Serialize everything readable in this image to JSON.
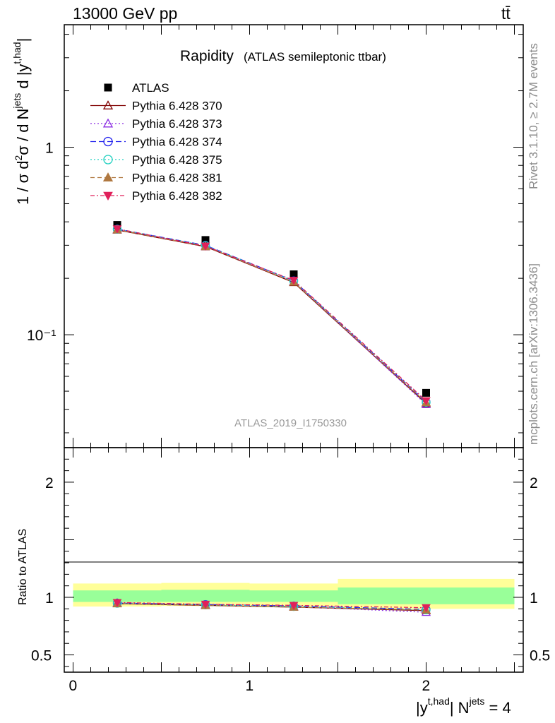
{
  "header": {
    "energy_label": "13000 GeV pp",
    "process_label": "tt̄"
  },
  "title": {
    "main": "Rapidity",
    "sub": "(ATLAS semileptonic ttbar)"
  },
  "sidebar": {
    "rivet": "Rivet 3.1.10, ≥ 2.7M events",
    "source": "mcplots.cern.ch [arXiv:1306.3436]"
  },
  "watermark": "ATLAS_2019_I1750330",
  "colors": {
    "data": "#000000",
    "band_inner": "#99ff99",
    "band_outer": "#ffff99"
  },
  "chart_data": [
    {
      "type": "line",
      "panel": "main",
      "ylabel": "1 / σ d²σ / d N^jets d |y^t,had|",
      "yscale": "log",
      "xlim": [
        -0.05,
        2.55
      ],
      "ylim": [
        0.025,
        4.5
      ],
      "y_tick_labels": [
        "10⁻¹",
        "1"
      ],
      "x": [
        0.25,
        0.75,
        1.25,
        2.0
      ],
      "series": [
        {
          "name": "ATLAS",
          "marker": "square-filled",
          "color": "#000000",
          "dash": "",
          "values": [
            0.385,
            0.32,
            0.21,
            0.049
          ]
        },
        {
          "name": "Pythia 6.428 370",
          "marker": "triangle-up-open",
          "color": "#800000",
          "dash": "",
          "values": [
            0.362,
            0.295,
            0.19,
            0.043
          ]
        },
        {
          "name": "Pythia 6.428 373",
          "marker": "triangle-up-open",
          "color": "#8a2be2",
          "dash": "2,3",
          "values": [
            0.364,
            0.298,
            0.192,
            0.0425
          ]
        },
        {
          "name": "Pythia 6.428 374",
          "marker": "circle-open",
          "color": "#2222ee",
          "dash": "8,4",
          "values": [
            0.366,
            0.3,
            0.194,
            0.0438
          ]
        },
        {
          "name": "Pythia 6.428 375",
          "marker": "circle-open",
          "color": "#20d0c0",
          "dash": "2,3",
          "values": [
            0.365,
            0.299,
            0.193,
            0.0436
          ]
        },
        {
          "name": "Pythia 6.428 381",
          "marker": "triangle-up-filled",
          "color": "#b07840",
          "dash": "6,4",
          "values": [
            0.363,
            0.296,
            0.191,
            0.0435
          ]
        },
        {
          "name": "Pythia 6.428 382",
          "marker": "triangle-down-filled",
          "color": "#e0205a",
          "dash": "6,3,2,3",
          "values": [
            0.367,
            0.297,
            0.195,
            0.0445
          ]
        }
      ]
    },
    {
      "type": "line",
      "panel": "ratio",
      "ylabel": "Ratio to ATLAS",
      "xlabel": "|y^t,had| N^jets = 4",
      "xlim": [
        -0.05,
        2.55
      ],
      "ylim": [
        0.35,
        2.3
      ],
      "x_tick_labels": [
        "0",
        "1",
        "2"
      ],
      "y_tick_labels": [
        "0.5",
        "1",
        "2"
      ],
      "x": [
        0.25,
        0.75,
        1.25,
        2.0
      ],
      "bands": [
        {
          "name": "total uncertainty",
          "bins": [
            [
              0.0,
              0.5,
              0.92,
              1.12
            ],
            [
              0.5,
              1.0,
              0.925,
              1.125
            ],
            [
              1.0,
              1.5,
              0.92,
              1.12
            ],
            [
              1.5,
              2.5,
              0.9,
              1.16
            ]
          ]
        },
        {
          "name": "stat uncertainty",
          "bins": [
            [
              0.0,
              0.5,
              0.96,
              1.06
            ],
            [
              0.5,
              1.0,
              0.96,
              1.065
            ],
            [
              1.0,
              1.5,
              0.96,
              1.06
            ],
            [
              1.5,
              2.5,
              0.94,
              1.085
            ]
          ]
        }
      ],
      "series": [
        {
          "name": "Pythia 6.428 370",
          "values": [
            0.945,
            0.93,
            0.915,
            0.885
          ]
        },
        {
          "name": "Pythia 6.428 373",
          "values": [
            0.952,
            0.935,
            0.92,
            0.87
          ]
        },
        {
          "name": "Pythia 6.428 374",
          "values": [
            0.95,
            0.938,
            0.925,
            0.895
          ]
        },
        {
          "name": "Pythia 6.428 375",
          "values": [
            0.948,
            0.934,
            0.92,
            0.89
          ]
        },
        {
          "name": "Pythia 6.428 381",
          "values": [
            0.944,
            0.928,
            0.915,
            0.89
          ]
        },
        {
          "name": "Pythia 6.428 382",
          "values": [
            0.955,
            0.94,
            0.93,
            0.91
          ]
        }
      ]
    }
  ]
}
